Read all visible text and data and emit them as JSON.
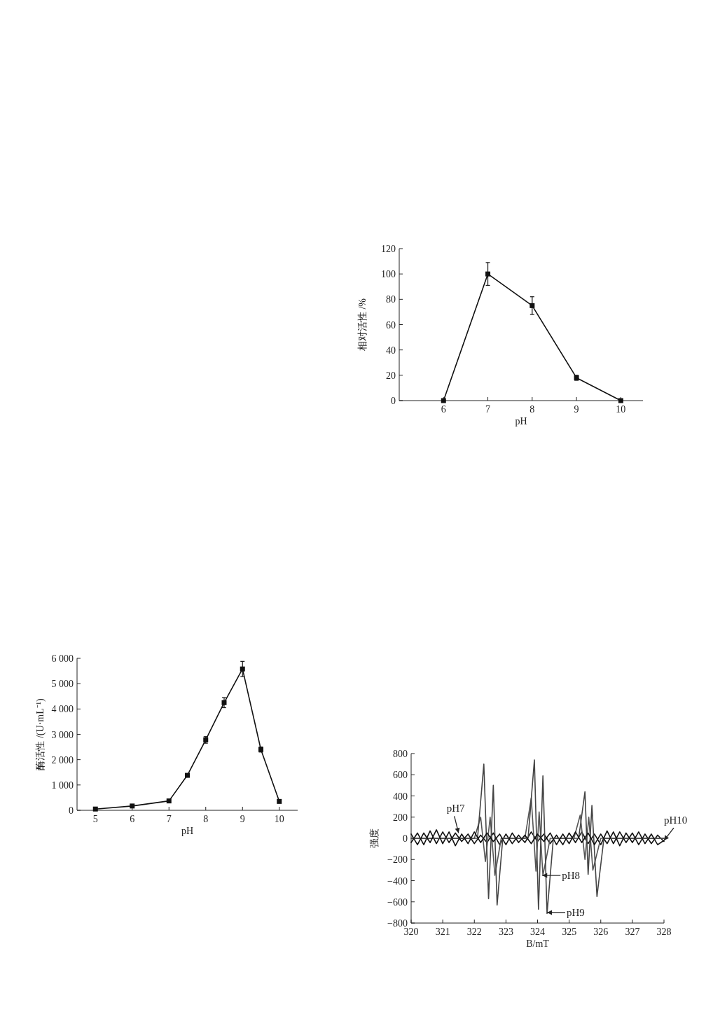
{
  "chart_data": [
    {
      "type": "line",
      "xlabel": "pH",
      "ylabel": "相对活性 /%",
      "marker": "square",
      "line_style": "solid",
      "xlim": [
        5,
        10.5
      ],
      "xticks": [
        6,
        7,
        8,
        9,
        10
      ],
      "ylim": [
        0,
        120
      ],
      "yticks": [
        0,
        20,
        40,
        60,
        80,
        100,
        120
      ],
      "series": [
        {
          "color": "#111111",
          "x": [
            6,
            7,
            8,
            9,
            10
          ],
          "values": [
            0,
            100,
            75,
            18,
            0
          ],
          "errors": [
            null,
            9,
            7,
            2,
            null
          ]
        }
      ]
    },
    {
      "type": "line",
      "xlabel": "pH",
      "ylabel": "酶活性 /(U·mL⁻¹)",
      "marker": "square",
      "line_style": "solid",
      "xlim": [
        4.5,
        10.5
      ],
      "xticks": [
        5,
        6,
        7,
        8,
        9,
        10
      ],
      "ylim": [
        0,
        6000
      ],
      "yticks": [
        0,
        {
          "value": 1000,
          "label": "1 000"
        },
        {
          "value": 2000,
          "label": "2 000"
        },
        {
          "value": 3000,
          "label": "3 000"
        },
        {
          "value": 4000,
          "label": "4 000"
        },
        {
          "value": 5000,
          "label": "5 000"
        },
        {
          "value": 6000,
          "label": "6 000"
        }
      ],
      "series": [
        {
          "color": "#111111",
          "x": [
            5,
            6,
            7,
            7.5,
            8,
            8.5,
            9,
            9.5,
            10
          ],
          "values": [
            50,
            170,
            370,
            1380,
            2780,
            4250,
            5580,
            2400,
            350
          ],
          "errors": [
            null,
            null,
            null,
            null,
            130,
            200,
            300,
            100,
            null
          ]
        }
      ]
    },
    {
      "type": "line",
      "xlabel": "B/mT",
      "ylabel": "强度",
      "line_style": "solid",
      "xlim": [
        320,
        328
      ],
      "xticks": [
        320,
        321,
        322,
        323,
        324,
        325,
        326,
        327,
        328
      ],
      "ylim": [
        -800,
        800
      ],
      "yticks": [
        {
          "value": -800,
          "label": "−800"
        },
        {
          "value": -600,
          "label": "−600"
        },
        {
          "value": -400,
          "label": "−400"
        },
        {
          "value": -200,
          "label": "−200"
        },
        0,
        200,
        400,
        600,
        800
      ],
      "series": [
        {
          "color": "#111111",
          "x": [
            320,
            320.2,
            320.4,
            320.6,
            320.8,
            321,
            321.2,
            321.4,
            321.6,
            321.8,
            322,
            322.2,
            322.4,
            322.6,
            322.8,
            323,
            323.2,
            323.4,
            323.6,
            323.8,
            324,
            324.2,
            324.4,
            324.6,
            324.8,
            325,
            325.2,
            325.4,
            325.6,
            325.8,
            326,
            326.2,
            326.4,
            326.6,
            326.8,
            327,
            327.2,
            327.4,
            327.6,
            327.8,
            328
          ],
          "values": [
            -40,
            50,
            -60,
            70,
            -50,
            60,
            -40,
            50,
            -30,
            40,
            -50,
            30,
            -40,
            50,
            -60,
            40,
            -50,
            30,
            -40,
            60,
            -30,
            40,
            -50,
            30,
            -60,
            50,
            -40,
            60,
            -50,
            40,
            -60,
            70,
            -50,
            60,
            -40,
            50,
            -60,
            40,
            -50,
            30,
            -30
          ]
        },
        {
          "color": "#555555",
          "x": [
            320,
            322,
            322.2,
            322.35,
            322.5,
            322.65,
            322.85,
            323.6,
            323.8,
            323.95,
            324.05,
            324.17,
            324.4,
            325.15,
            325.35,
            325.5,
            325.62,
            325.75,
            326,
            328
          ],
          "values": [
            0,
            0,
            200,
            -220,
            200,
            -350,
            0,
            0,
            380,
            -310,
            250,
            -350,
            0,
            0,
            220,
            -200,
            200,
            -300,
            0,
            0
          ]
        },
        {
          "color": "#444444",
          "x": [
            320,
            322.1,
            322.3,
            322.45,
            322.6,
            322.72,
            322.9,
            323.7,
            323.9,
            324.03,
            324.17,
            324.3,
            324.5,
            325.3,
            325.5,
            325.6,
            325.72,
            325.88,
            326.1,
            328
          ],
          "values": [
            0,
            0,
            700,
            -570,
            500,
            -630,
            0,
            0,
            740,
            -670,
            590,
            -710,
            0,
            0,
            440,
            -340,
            310,
            -550,
            0,
            0
          ]
        },
        {
          "color": "#111111",
          "x": [
            320,
            320.2,
            320.4,
            320.6,
            320.8,
            321,
            321.2,
            321.4,
            321.6,
            321.8,
            322,
            322.2,
            322.4,
            322.6,
            322.8,
            323,
            323.2,
            323.4,
            323.6,
            323.8,
            324,
            324.2,
            324.4,
            324.6,
            324.8,
            325,
            325.2,
            325.4,
            325.6,
            325.8,
            326,
            326.2,
            326.4,
            326.6,
            326.8,
            327,
            327.2,
            327.4,
            327.6,
            327.8,
            328
          ],
          "values": [
            40,
            -60,
            50,
            -40,
            80,
            -50,
            60,
            -70,
            40,
            -50,
            60,
            -40,
            50,
            -30,
            40,
            -60,
            50,
            -40,
            30,
            -50,
            40,
            -30,
            50,
            -60,
            40,
            -50,
            60,
            -40,
            50,
            -60,
            40,
            -50,
            60,
            -70,
            50,
            -40,
            60,
            -50,
            40,
            -60,
            -20
          ]
        }
      ],
      "annotations": [
        {
          "text": "pH7",
          "x": 321.5,
          "y": 50
        },
        {
          "text": "pH8",
          "x": 324.15,
          "y": -350
        },
        {
          "text": "pH9",
          "x": 324.3,
          "y": -700
        },
        {
          "text": "pH10",
          "x": 328,
          "y": -20
        }
      ]
    }
  ]
}
